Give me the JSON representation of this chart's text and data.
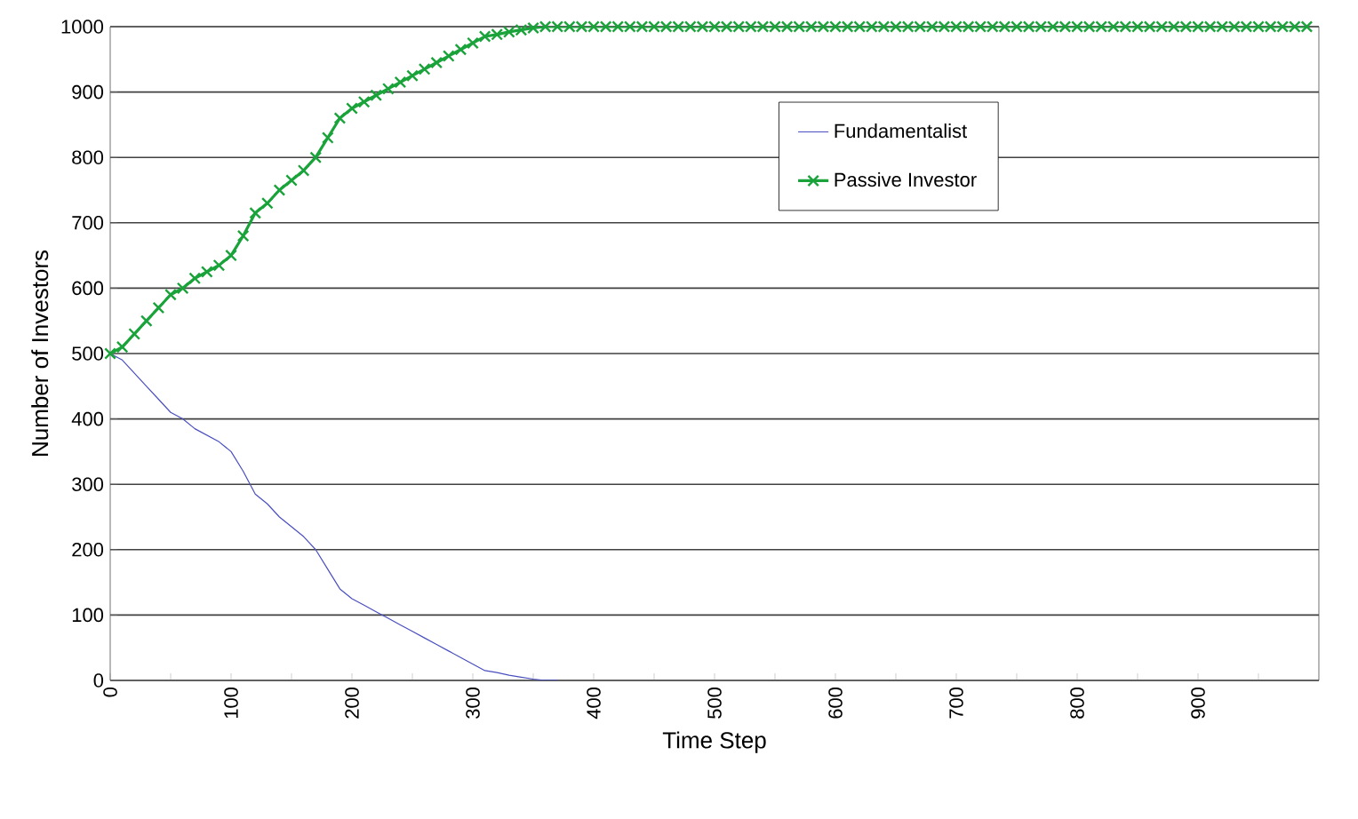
{
  "chart_data": {
    "type": "line",
    "xlabel": "Time Step",
    "ylabel": "Number of Investors",
    "xlim": [
      0,
      1000
    ],
    "ylim": [
      0,
      1000
    ],
    "xticks": [
      0,
      {
        "value": 50,
        "label": null
      },
      100,
      {
        "value": 150,
        "label": null
      },
      200,
      {
        "value": 250,
        "label": null
      },
      300,
      {
        "value": 350,
        "label": null
      },
      400,
      {
        "value": 450,
        "label": null
      },
      500,
      {
        "value": 550,
        "label": null
      },
      600,
      {
        "value": 650,
        "label": null
      },
      700,
      {
        "value": 750,
        "label": null
      },
      800,
      {
        "value": 850,
        "label": null
      },
      900,
      {
        "value": 950,
        "label": null
      }
    ],
    "yticks": [
      0,
      100,
      200,
      300,
      400,
      500,
      600,
      700,
      800,
      900,
      1000
    ],
    "grid": "y",
    "legend": "top right",
    "series": [
      {
        "name": "Fundamentalist",
        "color": "#4a4fc0",
        "marker": "none",
        "line_style": "solid",
        "x": [
          0,
          10,
          20,
          30,
          40,
          50,
          60,
          70,
          80,
          90,
          100,
          110,
          120,
          130,
          140,
          150,
          160,
          170,
          180,
          190,
          200,
          210,
          220,
          230,
          240,
          250,
          260,
          270,
          280,
          290,
          300,
          310,
          320,
          330,
          340,
          350,
          360,
          370
        ],
        "values": [
          500,
          490,
          470,
          450,
          430,
          410,
          400,
          385,
          375,
          365,
          350,
          320,
          285,
          270,
          250,
          235,
          220,
          200,
          170,
          140,
          125,
          115,
          105,
          95,
          85,
          75,
          65,
          55,
          45,
          35,
          25,
          15,
          12,
          8,
          5,
          2,
          0,
          0
        ]
      },
      {
        "name": "Passive Investor",
        "color": "#1aa33a",
        "marker": "cross",
        "line_style": "solid",
        "x": [
          0,
          10,
          20,
          30,
          40,
          50,
          60,
          70,
          80,
          90,
          100,
          110,
          120,
          130,
          140,
          150,
          160,
          170,
          180,
          190,
          200,
          210,
          220,
          230,
          240,
          250,
          260,
          270,
          280,
          290,
          300,
          310,
          320,
          330,
          340,
          350,
          360,
          370,
          380,
          390,
          400,
          410,
          420,
          430,
          440,
          450,
          460,
          470,
          480,
          490,
          500,
          510,
          520,
          530,
          540,
          550,
          560,
          570,
          580,
          590,
          600,
          610,
          620,
          630,
          640,
          650,
          660,
          670,
          680,
          690,
          700,
          710,
          720,
          730,
          740,
          750,
          760,
          770,
          780,
          790,
          800,
          810,
          820,
          830,
          840,
          850,
          860,
          870,
          880,
          890,
          900,
          910,
          920,
          930,
          940,
          950,
          960,
          970,
          980,
          990
        ],
        "values": [
          500,
          510,
          530,
          550,
          570,
          590,
          600,
          615,
          625,
          635,
          650,
          680,
          715,
          730,
          750,
          765,
          780,
          800,
          830,
          860,
          875,
          885,
          895,
          905,
          915,
          925,
          935,
          945,
          955,
          965,
          975,
          985,
          988,
          992,
          995,
          998,
          1000,
          1000,
          1000,
          1000,
          1000,
          1000,
          1000,
          1000,
          1000,
          1000,
          1000,
          1000,
          1000,
          1000,
          1000,
          1000,
          1000,
          1000,
          1000,
          1000,
          1000,
          1000,
          1000,
          1000,
          1000,
          1000,
          1000,
          1000,
          1000,
          1000,
          1000,
          1000,
          1000,
          1000,
          1000,
          1000,
          1000,
          1000,
          1000,
          1000,
          1000,
          1000,
          1000,
          1000,
          1000,
          1000,
          1000,
          1000,
          1000,
          1000,
          1000,
          1000,
          1000,
          1000,
          1000,
          1000,
          1000,
          1000,
          1000,
          1000,
          1000,
          1000,
          1000,
          1000
        ]
      }
    ]
  }
}
